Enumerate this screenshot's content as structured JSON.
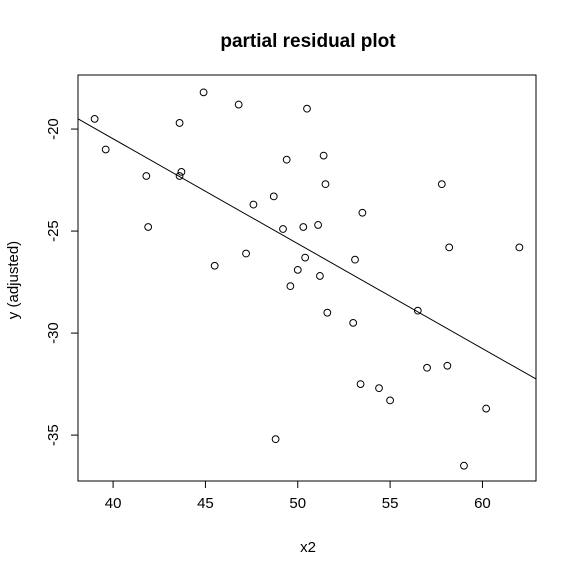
{
  "chart_data": {
    "type": "scatter",
    "title": "partial residual plot",
    "xlabel": "x2",
    "ylabel": "y (adjusted)",
    "xlim": [
      38.1,
      62.9
    ],
    "ylim": [
      -37.25,
      -17.35
    ],
    "x_ticks": [
      40,
      45,
      50,
      55,
      60
    ],
    "y_ticks": [
      -20,
      -25,
      -30,
      -35
    ],
    "grid": false,
    "legend": "none",
    "points": [
      {
        "x": 39.0,
        "y": -19.5
      },
      {
        "x": 39.6,
        "y": -21.0
      },
      {
        "x": 41.8,
        "y": -22.3
      },
      {
        "x": 41.9,
        "y": -24.8
      },
      {
        "x": 43.6,
        "y": -19.7
      },
      {
        "x": 43.6,
        "y": -22.3
      },
      {
        "x": 43.7,
        "y": -22.1
      },
      {
        "x": 44.9,
        "y": -18.2
      },
      {
        "x": 45.5,
        "y": -26.7
      },
      {
        "x": 46.8,
        "y": -18.8
      },
      {
        "x": 47.2,
        "y": -26.1
      },
      {
        "x": 47.6,
        "y": -23.7
      },
      {
        "x": 48.7,
        "y": -23.3
      },
      {
        "x": 48.8,
        "y": -35.2
      },
      {
        "x": 49.2,
        "y": -24.9
      },
      {
        "x": 49.4,
        "y": -21.5
      },
      {
        "x": 49.6,
        "y": -27.7
      },
      {
        "x": 50.0,
        "y": -26.9
      },
      {
        "x": 50.3,
        "y": -24.8
      },
      {
        "x": 50.4,
        "y": -26.3
      },
      {
        "x": 50.5,
        "y": -19.0
      },
      {
        "x": 51.1,
        "y": -24.7
      },
      {
        "x": 51.2,
        "y": -27.2
      },
      {
        "x": 51.4,
        "y": -21.3
      },
      {
        "x": 51.5,
        "y": -22.7
      },
      {
        "x": 51.6,
        "y": -29.0
      },
      {
        "x": 53.0,
        "y": -29.5
      },
      {
        "x": 53.1,
        "y": -26.4
      },
      {
        "x": 53.4,
        "y": -32.5
      },
      {
        "x": 53.5,
        "y": -24.1
      },
      {
        "x": 54.4,
        "y": -32.7
      },
      {
        "x": 55.0,
        "y": -33.3
      },
      {
        "x": 56.5,
        "y": -28.9
      },
      {
        "x": 57.0,
        "y": -31.7
      },
      {
        "x": 57.8,
        "y": -22.7
      },
      {
        "x": 58.1,
        "y": -31.6
      },
      {
        "x": 58.2,
        "y": -25.8
      },
      {
        "x": 59.0,
        "y": -36.5
      },
      {
        "x": 60.2,
        "y": -33.7
      },
      {
        "x": 62.0,
        "y": -25.8
      }
    ],
    "fit_line": {
      "type": "regression",
      "start": {
        "x": 38.1,
        "y": -19.5
      },
      "end": {
        "x": 62.9,
        "y": -32.25
      }
    }
  }
}
